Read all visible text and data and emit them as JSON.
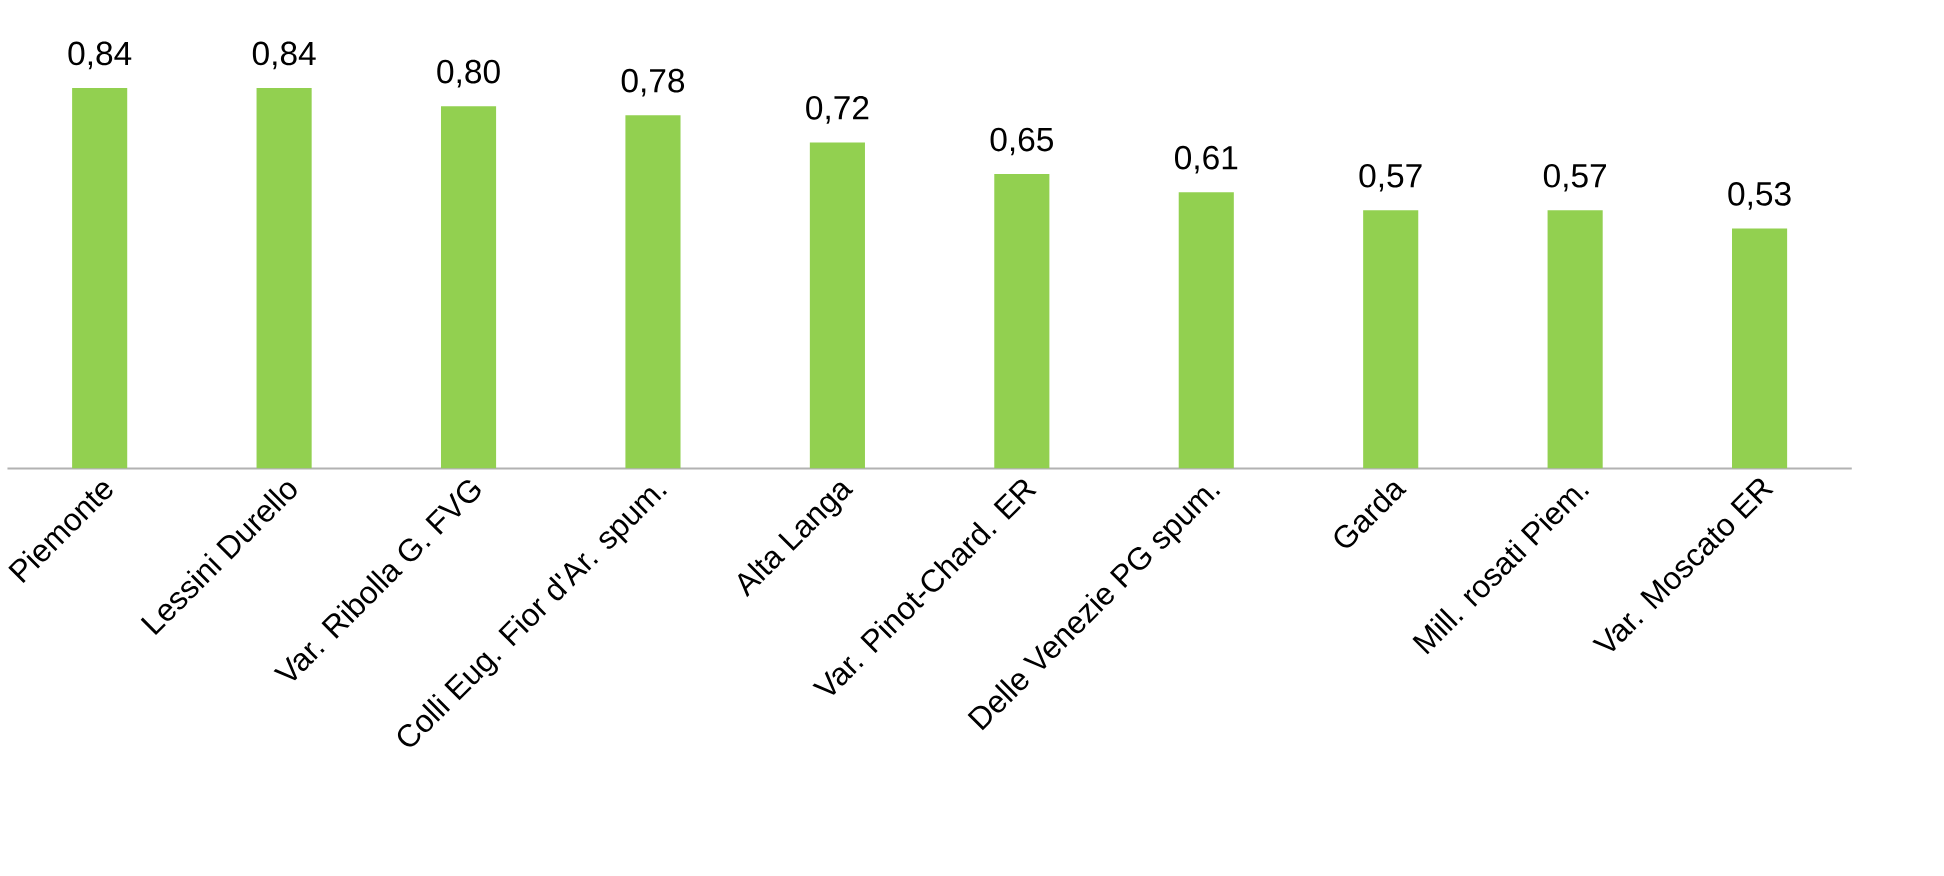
{
  "chart_data": {
    "type": "bar",
    "categories": [
      "Piemonte",
      "Lessini Durello",
      "Var. Ribolla G. FVG",
      "Colli Eug. Fior d'Ar. spum.",
      "Alta Langa",
      "Var. Pinot-Chard. ER",
      "Delle Venezie PG spum.",
      "Garda",
      "Mill. rosati Piem.",
      "Var. Moscato ER"
    ],
    "values": [
      0.84,
      0.84,
      0.8,
      0.78,
      0.72,
      0.65,
      0.61,
      0.57,
      0.57,
      0.53
    ],
    "value_labels": [
      "0,84",
      "0,84",
      "0,80",
      "0,78",
      "0,72",
      "0,65",
      "0,61",
      "0,57",
      "0,57",
      "0,53"
    ],
    "color": "#92d050"
  }
}
